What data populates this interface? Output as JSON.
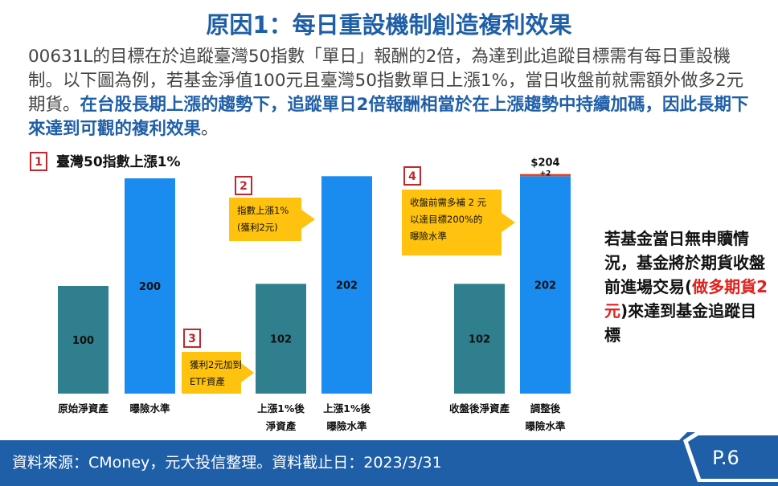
{
  "title": "原因1：每日重設機制創造複利效果",
  "intro": {
    "text": "00631L的目標在於追蹤臺灣50指數「單日」報酬的2倍，為達到此追蹤目標需有每日重設機制。以下圖為例，若基金淨值100元且臺灣50指數單日上漲1%，當日收盤前就需額外做多2元期貨。",
    "highlight": "在台股長期上漲的趨勢下，追蹤單日2倍報酬相當於在上漲趨勢中持續加碼，因此長期下來達到可觀的複利效果",
    "end": "。"
  },
  "steps": [
    {
      "number": "1",
      "lines": [
        "臺灣50指數上漲1%"
      ]
    },
    {
      "number": "2",
      "lines": [
        "指數上漲1%",
        "(獲利2元)"
      ]
    },
    {
      "number": "3",
      "lines": [
        "獲利2元加到",
        "ETF資產"
      ]
    },
    {
      "number": "4",
      "lines": [
        "收盤前需多補 2 元",
        "以達目標200%的",
        "曝險水準"
      ]
    }
  ],
  "bars": [
    {
      "label": [
        "原始淨資產"
      ],
      "value": 100,
      "color": "#2f7f8e"
    },
    {
      "label": [
        "曝險水準"
      ],
      "value": 200,
      "color": "#1a8cf0"
    },
    {
      "label": [
        "上漲1%後",
        "淨資產"
      ],
      "value": 102,
      "color": "#2f7f8e"
    },
    {
      "label": [
        "上漲1%後",
        "曝險水準"
      ],
      "value": 202,
      "color": "#1a8cf0"
    },
    {
      "label": [
        "收盤後淨資產"
      ],
      "value": 102,
      "color": "#2f7f8e"
    },
    {
      "label": [
        "調整後",
        "曝險水準"
      ],
      "value": 202,
      "color": "#1a8cf0",
      "extra": {
        "value": 2,
        "value_label": "+2",
        "color": "#e8401c",
        "total_label": "$204"
      }
    }
  ],
  "side_note": {
    "before": "若基金當日無申贖情況，基金將於期貨收盤前進場交易(",
    "highlight": "做多期貨2元",
    "after": ")來達到基金追蹤目標"
  },
  "footer": {
    "source": "資料來源：CMoney，元大投信整理。資料截止日：2023/3/31",
    "page": "P.6"
  }
}
